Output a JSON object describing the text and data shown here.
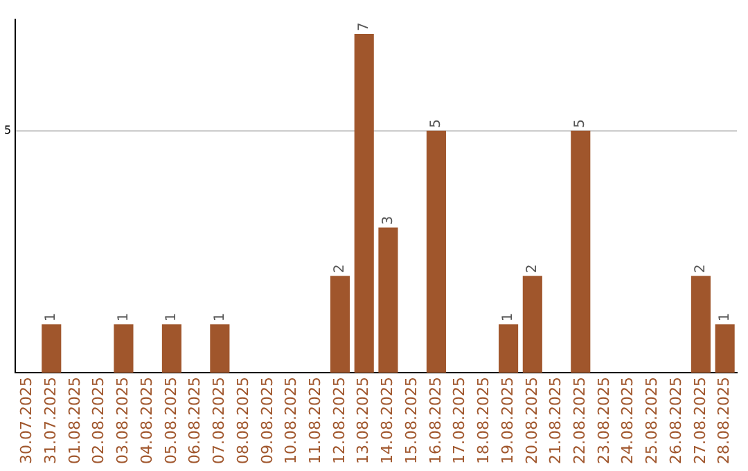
{
  "chart_data": {
    "type": "bar",
    "categories": [
      "30.07.2025",
      "31.07.2025",
      "01.08.2025",
      "02.08.2025",
      "03.08.2025",
      "04.08.2025",
      "05.08.2025",
      "06.08.2025",
      "07.08.2025",
      "08.08.2025",
      "09.08.2025",
      "10.08.2025",
      "11.08.2025",
      "12.08.2025",
      "13.08.2025",
      "14.08.2025",
      "15.08.2025",
      "16.08.2025",
      "17.08.2025",
      "18.08.2025",
      "19.08.2025",
      "20.08.2025",
      "21.08.2025",
      "22.08.2025",
      "23.08.2025",
      "24.08.2025",
      "25.08.2025",
      "26.08.2025",
      "27.08.2025",
      "28.08.2025"
    ],
    "values": [
      0,
      1,
      0,
      0,
      1,
      0,
      1,
      0,
      1,
      0,
      0,
      0,
      0,
      2,
      7,
      3,
      0,
      5,
      0,
      0,
      1,
      2,
      0,
      5,
      0,
      0,
      0,
      0,
      2,
      1
    ],
    "value_labels": [
      null,
      "1",
      null,
      null,
      "1",
      null,
      "1",
      null,
      "1",
      null,
      null,
      null,
      null,
      "2",
      "7",
      "3",
      null,
      "5",
      null,
      null,
      "1",
      "2",
      null,
      "5",
      null,
      null,
      null,
      null,
      "2",
      "1"
    ],
    "color": "#a0562c",
    "ylim": [
      0,
      7.3
    ],
    "yticks": [
      5
    ],
    "grid": "y",
    "legend": false
  }
}
